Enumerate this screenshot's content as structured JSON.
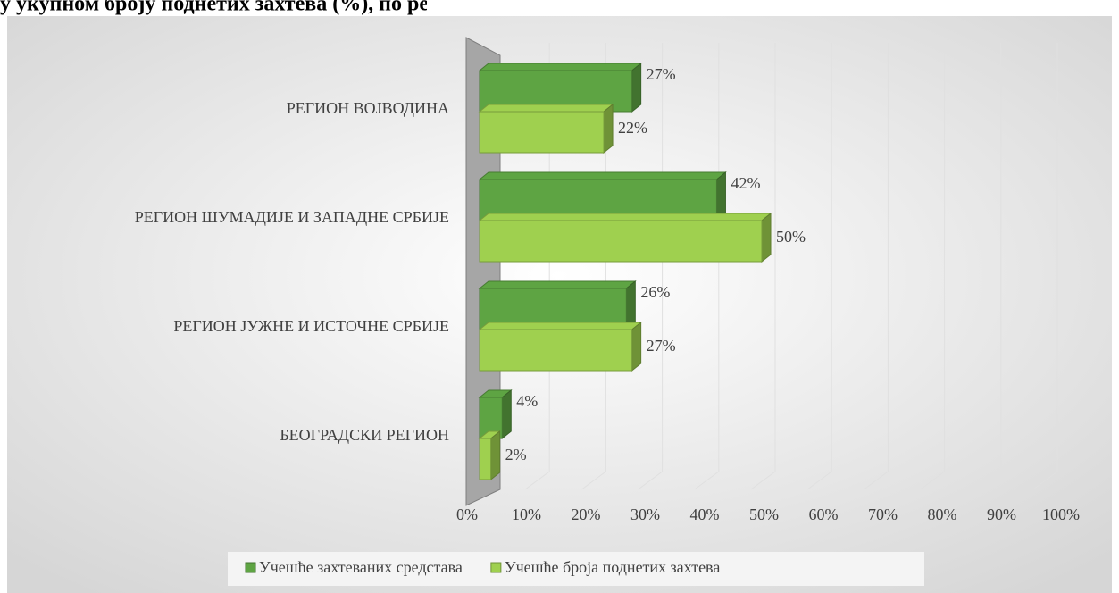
{
  "chart_data": {
    "type": "bar",
    "orientation": "horizontal",
    "title": "у укупном броју поднетих захтева (%), по регионима",
    "categories": [
      "РЕГИОН ВОЈВОДИНА",
      "РЕГИОН ШУМАДИЈЕ И ЗАПАДНЕ СРБИЈЕ",
      "РЕГИОН ЈУЖНЕ И ИСТОЧНЕ СРБИЈЕ",
      "БЕОГРАДСКИ РЕГИОН"
    ],
    "series": [
      {
        "name": "Учешће захтеваних средстава",
        "color": "#5ea443",
        "values": [
          27,
          42,
          26,
          4
        ],
        "value_labels": [
          "27%",
          "42%",
          "26%",
          "4%"
        ]
      },
      {
        "name": "Учешће броја поднетих захтева",
        "color": "#9fd04f",
        "values": [
          22,
          50,
          27,
          2
        ],
        "value_labels": [
          "22%",
          "50%",
          "27%",
          "2%"
        ]
      }
    ],
    "xlim": [
      0,
      100
    ],
    "xticks": [
      {
        "value": 0,
        "label": "0%"
      },
      {
        "value": 10,
        "label": "10%"
      },
      {
        "value": 20,
        "label": "20%"
      },
      {
        "value": 30,
        "label": "30%"
      },
      {
        "value": 40,
        "label": "40%"
      },
      {
        "value": 50,
        "label": "50%"
      },
      {
        "value": 60,
        "label": "60%"
      },
      {
        "value": 70,
        "label": "70%"
      },
      {
        "value": 80,
        "label": "80%"
      },
      {
        "value": 90,
        "label": "90%"
      },
      {
        "value": 100,
        "label": "100%"
      }
    ],
    "grid": true,
    "legend": "bottom"
  }
}
